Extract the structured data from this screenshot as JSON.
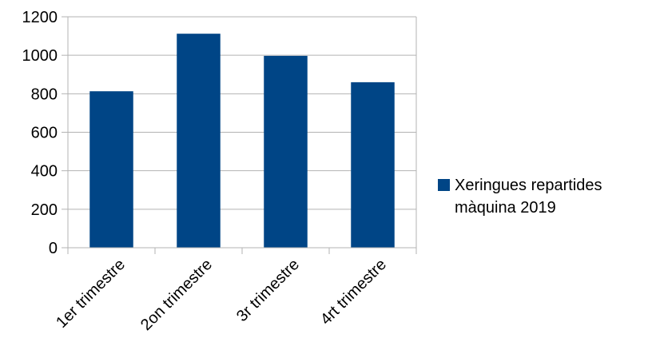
{
  "chart_data": {
    "type": "bar",
    "categories": [
      "1er trimestre",
      "2on trimestre",
      "3r trimestre",
      "4rt trimestre"
    ],
    "series": [
      {
        "name": "Xeringues repartides màquina 2019",
        "values": [
          813,
          1112,
          997,
          860
        ],
        "color": "#004586"
      }
    ],
    "ylim": [
      0,
      1200
    ],
    "yticks": [
      0,
      200,
      400,
      600,
      800,
      1000,
      1200
    ],
    "grid": true,
    "legend_position": "right"
  }
}
